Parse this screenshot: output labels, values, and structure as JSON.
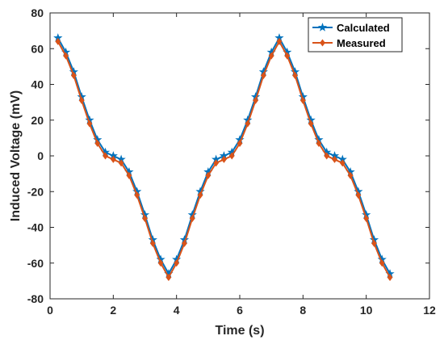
{
  "chart_data": {
    "type": "line",
    "title": "",
    "xlabel": "Time (s)",
    "ylabel": "Induced Voltage (mV)",
    "xlim": [
      0,
      12
    ],
    "ylim": [
      -80,
      80
    ],
    "xticks": [
      0,
      2,
      4,
      6,
      8,
      10,
      12
    ],
    "yticks": [
      -80,
      -60,
      -40,
      -20,
      0,
      20,
      40,
      60,
      80
    ],
    "grid": false,
    "legend_position": "top-right",
    "series": [
      {
        "name": "Calculated",
        "color": "#0072BD",
        "marker": "star",
        "x": [
          0.25,
          0.5,
          0.75,
          1.0,
          1.25,
          1.5,
          1.75,
          2.0,
          2.25,
          2.5,
          2.75,
          3.0,
          3.25,
          3.5,
          3.75,
          4.0,
          4.25,
          4.5,
          4.75,
          5.0,
          5.25,
          5.5,
          5.75,
          6.0,
          6.25,
          6.5,
          6.75,
          7.0,
          7.25,
          7.5,
          7.75,
          8.0,
          8.25,
          8.5,
          8.75,
          9.0,
          9.25,
          9.5,
          9.75,
          10.0,
          10.25,
          10.5,
          10.75
        ],
        "y": [
          66,
          58,
          47,
          33,
          20,
          9,
          2,
          0,
          -2,
          -9,
          -20,
          -33,
          -47,
          -58,
          -66,
          -58,
          -47,
          -33,
          -20,
          -9,
          -2,
          0,
          2,
          9,
          20,
          33,
          47,
          58,
          66,
          58,
          47,
          33,
          20,
          9,
          2,
          0,
          -2,
          -9,
          -20,
          -33,
          -47,
          -58,
          -66
        ]
      },
      {
        "name": "Measured",
        "color": "#D95319",
        "marker": "diamond",
        "x": [
          0.25,
          0.5,
          0.75,
          1.0,
          1.25,
          1.5,
          1.75,
          2.0,
          2.25,
          2.5,
          2.75,
          3.0,
          3.25,
          3.5,
          3.75,
          4.0,
          4.25,
          4.5,
          4.75,
          5.0,
          5.25,
          5.5,
          5.75,
          6.0,
          6.25,
          6.5,
          6.75,
          7.0,
          7.25,
          7.5,
          7.75,
          8.0,
          8.25,
          8.5,
          8.75,
          9.0,
          9.25,
          9.5,
          9.75,
          10.0,
          10.25,
          10.5,
          10.75
        ],
        "y": [
          64,
          56,
          45,
          31,
          18,
          7,
          0,
          -2,
          -4,
          -11,
          -22,
          -35,
          -49,
          -60,
          -68,
          -60,
          -49,
          -35,
          -22,
          -11,
          -4,
          -2,
          0,
          7,
          18,
          31,
          45,
          56,
          64,
          56,
          45,
          31,
          18,
          7,
          0,
          -2,
          -4,
          -11,
          -22,
          -35,
          -49,
          -60,
          -68
        ]
      }
    ]
  }
}
